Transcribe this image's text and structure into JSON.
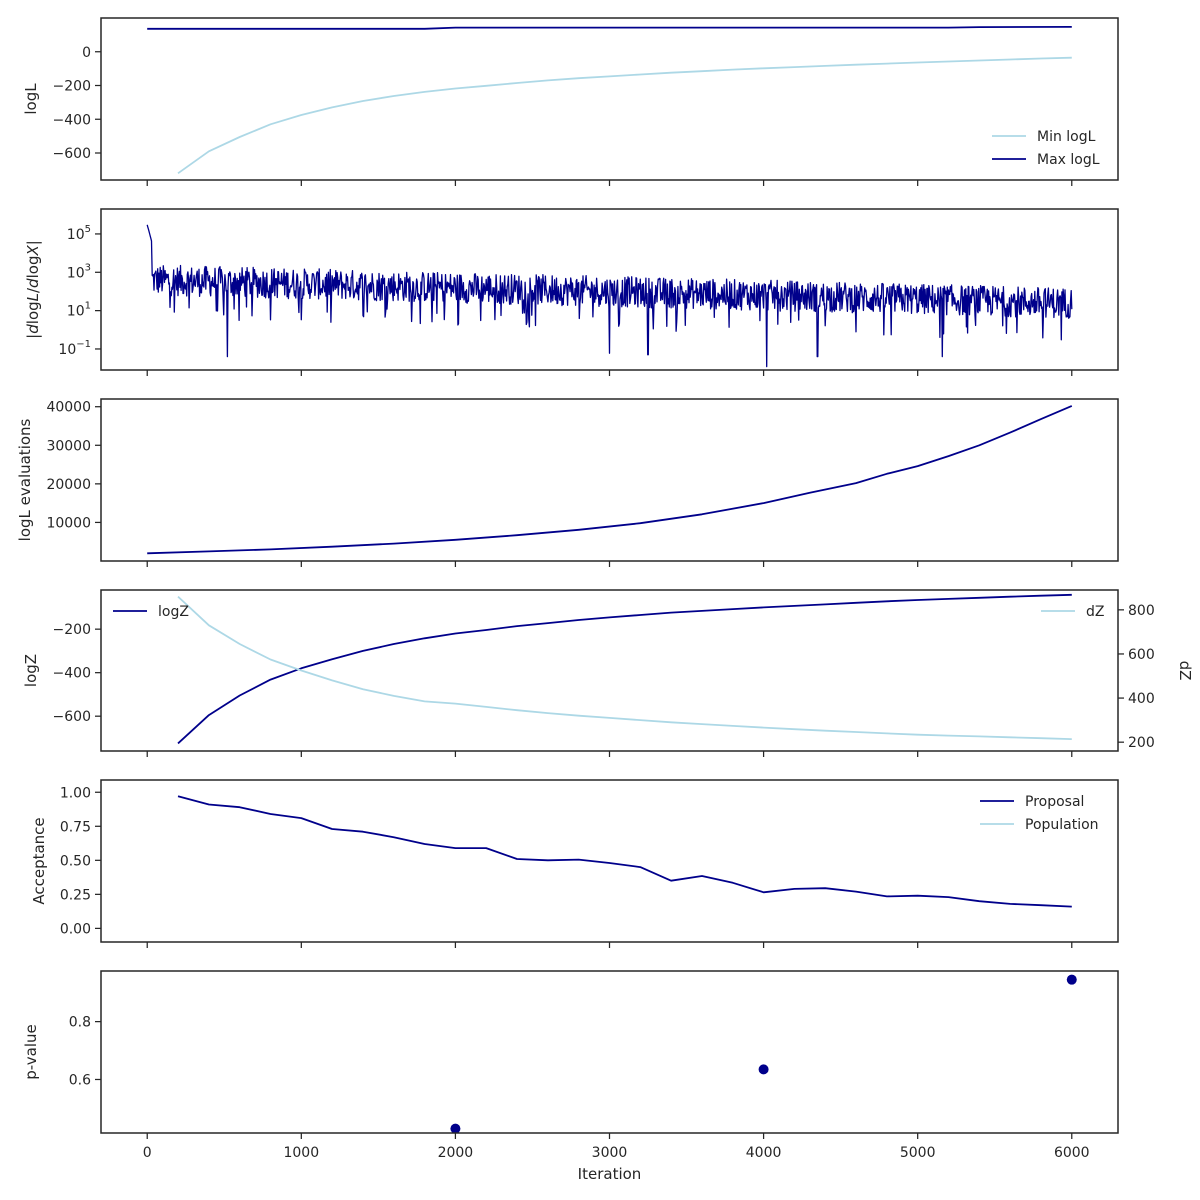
{
  "colors": {
    "dark": "#00008b",
    "light": "#add8e6",
    "axis": "#262626"
  },
  "x_axis": {
    "label": "Iteration",
    "ticks": [
      0,
      1000,
      2000,
      3000,
      4000,
      5000,
      6000
    ],
    "tick_labels": [
      "0",
      "1000",
      "2000",
      "3000",
      "4000",
      "5000",
      "6000"
    ],
    "xlim": [
      -300,
      6300
    ]
  },
  "chart_data": [
    {
      "type": "line",
      "ylabel": "logL",
      "ylim": [
        -760,
        200
      ],
      "yticks": [
        0,
        -200,
        -400,
        -600
      ],
      "ytick_labels": [
        "0",
        "−200",
        "−400",
        "−600"
      ],
      "legend_position": "lower-right",
      "series": [
        {
          "name": "Min logL",
          "color": "#add8e6",
          "x": [
            200,
            400,
            600,
            800,
            1000,
            1200,
            1400,
            1600,
            1800,
            2000,
            2200,
            2400,
            2600,
            2800,
            3000,
            3200,
            3400,
            3600,
            3800,
            4000,
            4200,
            4400,
            4600,
            4800,
            5000,
            5200,
            5400,
            5600,
            5800,
            6000
          ],
          "y": [
            -720,
            -590,
            -505,
            -430,
            -375,
            -330,
            -292,
            -262,
            -238,
            -218,
            -202,
            -185,
            -170,
            -157,
            -146,
            -135,
            -124,
            -115,
            -106,
            -98,
            -91,
            -84,
            -77,
            -70,
            -64,
            -58,
            -52,
            -46,
            -40,
            -35
          ]
        },
        {
          "name": "Max logL",
          "color": "#00008b",
          "x": [
            0,
            1800,
            2000,
            5200,
            5400,
            6000
          ],
          "y": [
            136,
            136,
            143,
            143,
            146,
            147
          ]
        }
      ]
    },
    {
      "type": "line",
      "ylabel": "|dlogL/dlogX|",
      "scale": "log",
      "ylim": [
        0.008,
        2000000
      ],
      "yticks": [
        100000,
        1000,
        10,
        0.1
      ],
      "ytick_labels": [
        "10^5",
        "10^3",
        "10^1",
        "10^-1"
      ],
      "series": [
        {
          "name": "",
          "color": "#00008b",
          "x_range": [
            0,
            6000
          ],
          "peak": 300000,
          "band_center_start": 400,
          "band_center_end": 25,
          "dips": [
            {
              "x": 520,
              "y": 0.04
            },
            {
              "x": 3000,
              "y": 0.06
            },
            {
              "x": 3250,
              "y": 0.05
            },
            {
              "x": 4020,
              "y": 0.012
            },
            {
              "x": 4350,
              "y": 0.04
            },
            {
              "x": 5160,
              "y": 0.04
            }
          ]
        }
      ]
    },
    {
      "type": "line",
      "ylabel": "logL evaluations",
      "ylim": [
        0,
        42000
      ],
      "yticks": [
        40000,
        30000,
        20000,
        10000
      ],
      "ytick_labels": [
        "40000",
        "30000",
        "20000",
        "10000"
      ],
      "series": [
        {
          "name": "",
          "color": "#00008b",
          "x": [
            0,
            400,
            800,
            1200,
            1600,
            2000,
            2400,
            2800,
            3200,
            3600,
            4000,
            4300,
            4600,
            4800,
            5000,
            5200,
            5400,
            5600,
            5800,
            6000
          ],
          "y": [
            2000,
            2500,
            3000,
            3700,
            4500,
            5500,
            6700,
            8100,
            9800,
            12100,
            15000,
            17700,
            20200,
            22600,
            24600,
            27200,
            30000,
            33300,
            36800,
            40200
          ]
        }
      ]
    },
    {
      "type": "line",
      "ylabel": "logZ",
      "ylim": [
        -760,
        -20
      ],
      "yticks": [
        -200,
        -400,
        -600
      ],
      "ytick_labels": [
        "−200",
        "−400",
        "−600"
      ],
      "y2label": "dZ",
      "y2lim": [
        160,
        890
      ],
      "y2ticks": [
        800,
        600,
        400,
        200
      ],
      "y2tick_labels": [
        "800",
        "600",
        "400",
        "200"
      ],
      "legend_left": "logZ",
      "legend_right": "dZ",
      "series": [
        {
          "name": "logZ",
          "color": "#00008b",
          "axis": "left",
          "x": [
            200,
            400,
            600,
            800,
            1000,
            1200,
            1400,
            1600,
            1800,
            2000,
            2200,
            2400,
            2600,
            2800,
            3000,
            3200,
            3400,
            3600,
            3800,
            4000,
            4200,
            4400,
            4600,
            4800,
            5000,
            5200,
            5400,
            5600,
            5800,
            6000
          ],
          "y": [
            -725,
            -595,
            -505,
            -432,
            -380,
            -338,
            -300,
            -268,
            -242,
            -220,
            -204,
            -186,
            -172,
            -158,
            -146,
            -135,
            -124,
            -116,
            -108,
            -100,
            -93,
            -86,
            -79,
            -72,
            -66,
            -61,
            -56,
            -51,
            -46,
            -42
          ]
        },
        {
          "name": "dZ",
          "color": "#add8e6",
          "axis": "right",
          "x": [
            200,
            400,
            600,
            800,
            1000,
            1200,
            1400,
            1600,
            1800,
            2000,
            2200,
            2400,
            2600,
            2800,
            3000,
            3200,
            3400,
            3600,
            3800,
            4000,
            4200,
            4400,
            4600,
            4800,
            5000,
            5200,
            5400,
            5600,
            5800,
            6000
          ],
          "y": [
            860,
            730,
            645,
            575,
            525,
            480,
            440,
            410,
            385,
            375,
            360,
            345,
            332,
            320,
            310,
            300,
            290,
            282,
            274,
            266,
            259,
            252,
            246,
            240,
            234,
            230,
            226,
            222,
            218,
            214
          ]
        }
      ]
    },
    {
      "type": "line",
      "ylabel": "Acceptance",
      "ylim": [
        -0.1,
        1.09
      ],
      "yticks": [
        1.0,
        0.75,
        0.5,
        0.25,
        0.0
      ],
      "ytick_labels": [
        "1.00",
        "0.75",
        "0.50",
        "0.25",
        "0.00"
      ],
      "legend_position": "upper-right",
      "series": [
        {
          "name": "Proposal",
          "color": "#00008b",
          "x": [
            200,
            400,
            600,
            800,
            1000,
            1200,
            1400,
            1600,
            1800,
            2000,
            2200,
            2400,
            2600,
            2800,
            3000,
            3200,
            3400,
            3600,
            3800,
            4000,
            4200,
            4400,
            4600,
            4800,
            5000,
            5200,
            5400,
            5600,
            5800,
            6000
          ],
          "y": [
            0.97,
            0.91,
            0.89,
            0.84,
            0.81,
            0.73,
            0.71,
            0.67,
            0.62,
            0.59,
            0.59,
            0.51,
            0.5,
            0.505,
            0.48,
            0.45,
            0.35,
            0.385,
            0.335,
            0.265,
            0.29,
            0.295,
            0.27,
            0.235,
            0.24,
            0.23,
            0.2,
            0.18,
            0.17,
            0.16
          ]
        },
        {
          "name": "Population",
          "color": "#add8e6",
          "x": [],
          "y": []
        }
      ]
    },
    {
      "type": "scatter",
      "ylabel": "p-value",
      "ylim": [
        0.415,
        0.975
      ],
      "yticks": [
        0.8,
        0.6
      ],
      "ytick_labels": [
        "0.8",
        "0.6"
      ],
      "series": [
        {
          "name": "",
          "color": "#00008b",
          "x": [
            2000,
            4000,
            6000
          ],
          "y": [
            0.43,
            0.635,
            0.945
          ]
        }
      ]
    }
  ]
}
